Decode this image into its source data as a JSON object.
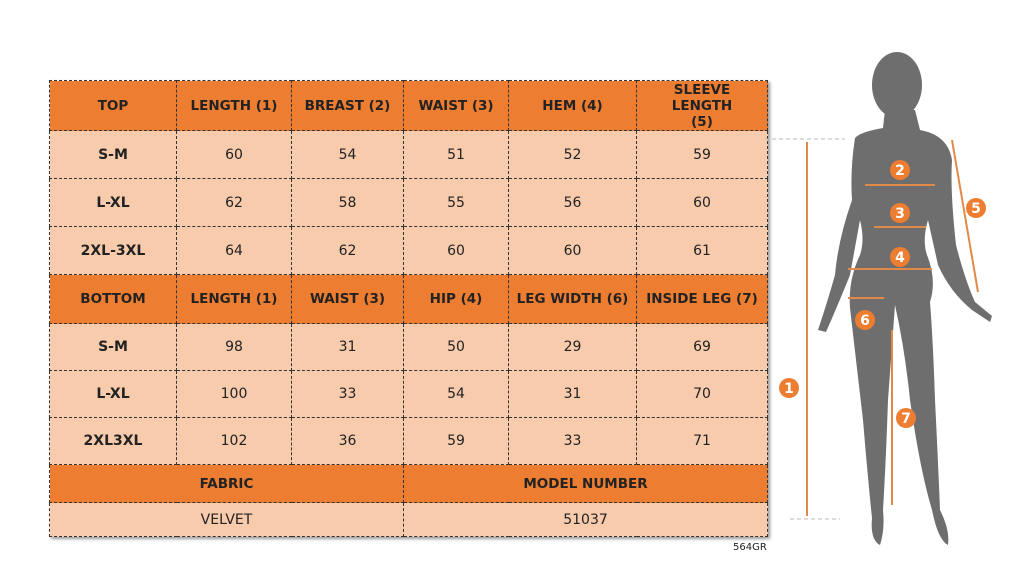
{
  "top": {
    "headers": [
      "TOP",
      "LENGTH (1)",
      "BREAST (2)",
      "WAIST (3)",
      "HEM (4)",
      "SLEEVE LENGTH (5)"
    ],
    "rows": [
      [
        "S-M",
        "60",
        "54",
        "51",
        "52",
        "59"
      ],
      [
        "L-XL",
        "62",
        "58",
        "55",
        "56",
        "60"
      ],
      [
        "2XL-3XL",
        "64",
        "62",
        "60",
        "60",
        "61"
      ]
    ]
  },
  "bottom": {
    "headers": [
      "BOTTOM",
      "LENGTH (1)",
      "WAIST (3)",
      "HIP (4)",
      "LEG WIDTH (6)",
      "INSIDE LEG (7)"
    ],
    "rows": [
      [
        "S-M",
        "98",
        "31",
        "50",
        "29",
        "69"
      ],
      [
        "L-XL",
        "100",
        "33",
        "54",
        "31",
        "70"
      ],
      [
        "2XL3XL",
        "102",
        "36",
        "59",
        "33",
        "71"
      ]
    ]
  },
  "fabric": {
    "label": "FABRIC",
    "value": "VELVET"
  },
  "model": {
    "label": "MODEL NUMBER",
    "value": "51037"
  },
  "code": "564GR",
  "diagram": {
    "markers": [
      "1",
      "2",
      "3",
      "4",
      "5",
      "6",
      "7"
    ],
    "accent": "#ed7d31",
    "silhouette": "#6e6e6e"
  }
}
